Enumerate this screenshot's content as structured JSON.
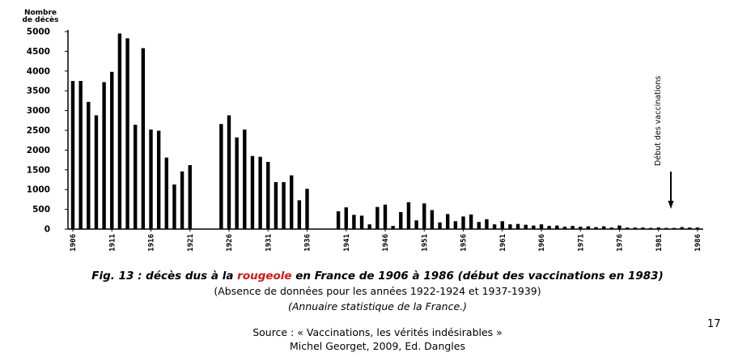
{
  "chart_data": {
    "type": "bar",
    "title": "",
    "ylabel_line1": "Nombre",
    "ylabel_line2": "de décès",
    "xlabel": "",
    "ylim": [
      0,
      5000
    ],
    "yticks": [
      0,
      500,
      1000,
      1500,
      2000,
      2500,
      3000,
      3500,
      4000,
      4500,
      5000
    ],
    "xlim": [
      1906,
      1986
    ],
    "xtick_labels": [
      "1906",
      "1911",
      "1916",
      "1921",
      "1926",
      "1931",
      "1936",
      "1941",
      "1946",
      "1951",
      "1956",
      "1961",
      "1966",
      "1971",
      "1976",
      "1981",
      "1986"
    ],
    "annotation": {
      "text": "Début des vaccinations",
      "year": 1983
    },
    "bar_color": "#000000",
    "x": [
      1906,
      1907,
      1908,
      1909,
      1910,
      1911,
      1912,
      1913,
      1914,
      1915,
      1916,
      1917,
      1918,
      1919,
      1920,
      1921,
      1925,
      1926,
      1927,
      1928,
      1929,
      1930,
      1931,
      1932,
      1933,
      1934,
      1935,
      1936,
      1940,
      1941,
      1942,
      1943,
      1944,
      1945,
      1946,
      1947,
      1948,
      1949,
      1950,
      1951,
      1952,
      1953,
      1954,
      1955,
      1956,
      1957,
      1958,
      1959,
      1960,
      1961,
      1962,
      1963,
      1964,
      1965,
      1966,
      1967,
      1968,
      1969,
      1970,
      1971,
      1972,
      1973,
      1974,
      1975,
      1976,
      1977,
      1978,
      1979,
      1980,
      1981,
      1982,
      1983,
      1984,
      1985,
      1986
    ],
    "values": [
      3750,
      3750,
      3220,
      2880,
      3720,
      3980,
      4950,
      4830,
      2640,
      4580,
      2520,
      2490,
      1810,
      1130,
      1460,
      1620,
      2660,
      2880,
      2320,
      2520,
      1850,
      1830,
      1700,
      1190,
      1190,
      1360,
      730,
      1020,
      450,
      550,
      360,
      340,
      120,
      560,
      620,
      80,
      430,
      680,
      220,
      650,
      480,
      170,
      380,
      200,
      320,
      370,
      180,
      250,
      120,
      200,
      120,
      130,
      110,
      90,
      120,
      80,
      90,
      60,
      80,
      60,
      70,
      50,
      70,
      40,
      90,
      40,
      40,
      40,
      30,
      40,
      30,
      30,
      50,
      40,
      40
    ]
  },
  "caption": {
    "fig_prefix": "Fig. 13 : décès dus à la ",
    "fig_highlight": "rougeole",
    "fig_suffix": " en France de 1906 à 1986 (début des vaccinations en 1983)",
    "note": "(Absence de données pour les années 1922-1924 et 1937-1939)",
    "origin": "(Annuaire statistique de la France.)",
    "source_line1": "Source : « Vaccinations, les vérités indésirables »",
    "source_line2": "Michel Georget, 2009, Ed. Dangles"
  },
  "page_number": "17"
}
